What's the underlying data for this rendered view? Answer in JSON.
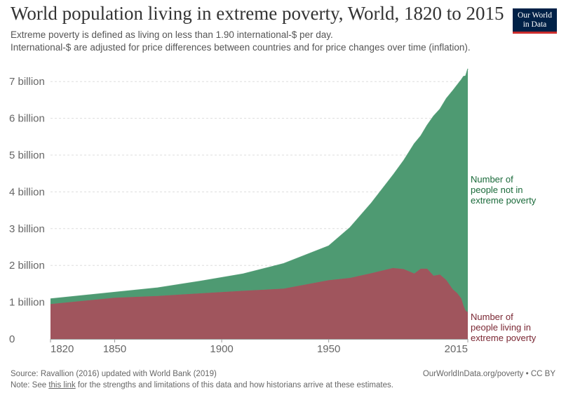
{
  "header": {
    "title": "World population living in extreme poverty, World, 1820 to 2015",
    "subtitle_line1": "Extreme poverty is defined as living on less than 1.90 international-$ per day.",
    "subtitle_line2": "International-$ are adjusted for price differences between countries and for price changes over time (inflation)."
  },
  "logo": {
    "line1": "Our World",
    "line2": "in Data",
    "bg_color": "#002147",
    "accent_color": "#cc2d2d"
  },
  "footer": {
    "source": "Source: Ravallion (2016) updated with World Bank (2019)",
    "note_prefix": "Note: See ",
    "note_link": "this link",
    "note_suffix": " for the strengths and limitations of this data and how historians arrive at these estimates.",
    "credit": "OurWorldInData.org/poverty • CC BY"
  },
  "chart_data": {
    "type": "area",
    "stacked": true,
    "title": "World population living in extreme poverty, World, 1820 to 2015",
    "xlabel": "",
    "ylabel": "",
    "xlim": [
      1820,
      2015
    ],
    "ylim": [
      0,
      7.5
    ],
    "y_unit": "billion",
    "x_ticks": [
      1820,
      1850,
      1900,
      1950,
      2015
    ],
    "y_ticks": [
      {
        "value": 0,
        "label": "0"
      },
      {
        "value": 1,
        "label": "1 billion"
      },
      {
        "value": 2,
        "label": "2 billion"
      },
      {
        "value": 3,
        "label": "3 billion"
      },
      {
        "value": 4,
        "label": "4 billion"
      },
      {
        "value": 5,
        "label": "5 billion"
      },
      {
        "value": 6,
        "label": "6 billion"
      },
      {
        "value": 7,
        "label": "7 billion"
      }
    ],
    "grid": true,
    "series": [
      {
        "name": "Number of people living in extreme poverty",
        "label_lines": [
          "Number of",
          "people living in",
          "extreme poverty"
        ],
        "color": "#a0555d",
        "label_color": "#7a2733",
        "points": [
          [
            1820,
            0.95
          ],
          [
            1850,
            1.12
          ],
          [
            1870,
            1.17
          ],
          [
            1890,
            1.24
          ],
          [
            1910,
            1.31
          ],
          [
            1929,
            1.37
          ],
          [
            1950,
            1.6
          ],
          [
            1960,
            1.66
          ],
          [
            1970,
            1.79
          ],
          [
            1980,
            1.93
          ],
          [
            1985,
            1.9
          ],
          [
            1990,
            1.78
          ],
          [
            1993,
            1.91
          ],
          [
            1996,
            1.91
          ],
          [
            1999,
            1.72
          ],
          [
            2002,
            1.75
          ],
          [
            2005,
            1.6
          ],
          [
            2008,
            1.35
          ],
          [
            2010,
            1.25
          ],
          [
            2012,
            1.1
          ],
          [
            2013,
            0.9
          ],
          [
            2014,
            0.77
          ],
          [
            2015,
            0.73
          ]
        ]
      },
      {
        "name": "Number of people not in extreme poverty",
        "label_lines": [
          "Number of",
          "people not in",
          "extreme poverty"
        ],
        "color": "#4e9a72",
        "label_color": "#1a6a3a",
        "points": [
          [
            1820,
            0.14
          ],
          [
            1850,
            0.15
          ],
          [
            1870,
            0.22
          ],
          [
            1890,
            0.33
          ],
          [
            1910,
            0.46
          ],
          [
            1929,
            0.68
          ],
          [
            1950,
            0.93
          ],
          [
            1960,
            1.37
          ],
          [
            1970,
            1.91
          ],
          [
            1980,
            2.52
          ],
          [
            1985,
            2.95
          ],
          [
            1990,
            3.53
          ],
          [
            1993,
            3.61
          ],
          [
            1996,
            3.9
          ],
          [
            1999,
            4.34
          ],
          [
            2002,
            4.5
          ],
          [
            2005,
            4.94
          ],
          [
            2008,
            5.4
          ],
          [
            2010,
            5.65
          ],
          [
            2012,
            5.95
          ],
          [
            2013,
            6.24
          ],
          [
            2014,
            6.38
          ],
          [
            2015,
            6.62
          ]
        ]
      }
    ]
  }
}
